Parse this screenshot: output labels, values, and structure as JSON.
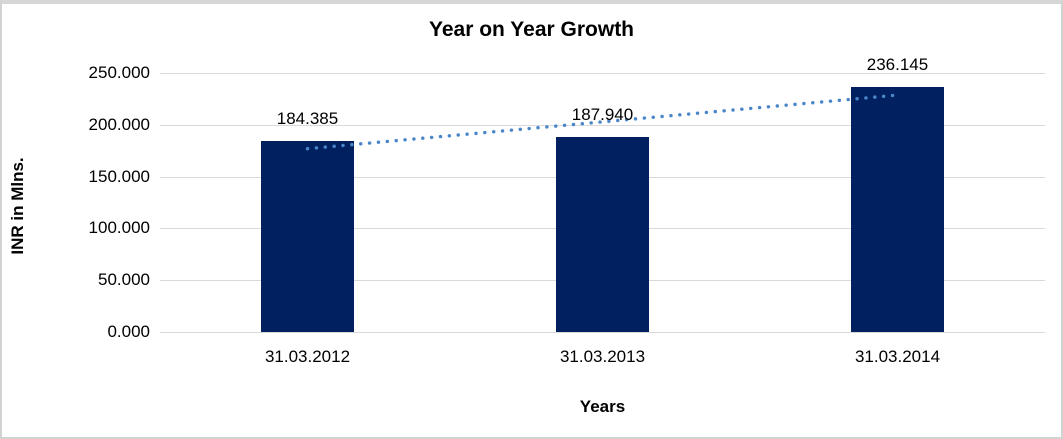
{
  "frame": {
    "background": "#ffffff",
    "border_color": "#d2d2d2"
  },
  "chart_data": {
    "type": "bar",
    "title": "Year on Year Growth",
    "xlabel": "Years",
    "ylabel": "INR in Mlns.",
    "categories": [
      "31.03.2012",
      "31.03.2013",
      "31.03.2014"
    ],
    "values": [
      184.385,
      187.94,
      236.145
    ],
    "value_labels": [
      "184.385",
      "187.940",
      "236.145"
    ],
    "ylim": [
      0,
      250
    ],
    "ytick_step": 50,
    "ytick_labels": [
      "0.000",
      "50.000",
      "100.000",
      "150.000",
      "200.000",
      "250.000"
    ],
    "grid": true,
    "legend": "none",
    "bar_color": "#002060",
    "gridline_color": "#d9d9d9",
    "trendline": {
      "type": "linear",
      "style": "dotted",
      "color": "#4a86c8"
    }
  }
}
